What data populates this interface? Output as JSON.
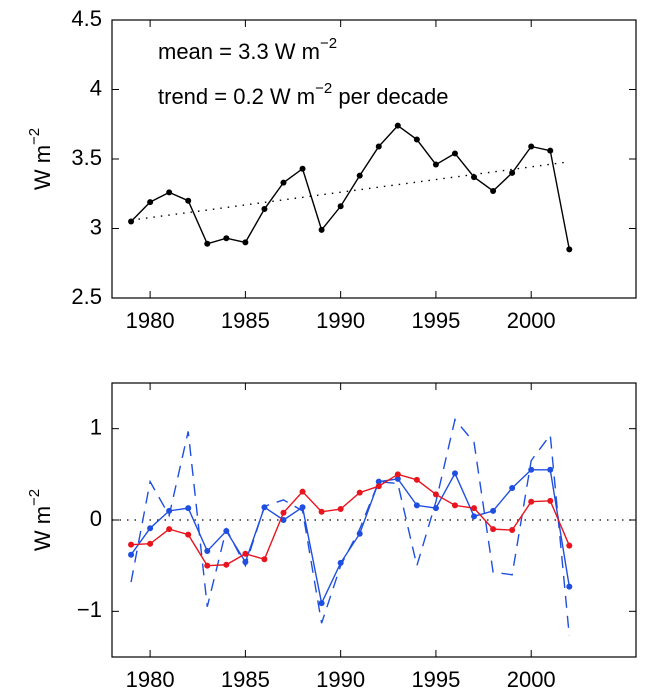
{
  "chart_data": [
    {
      "type": "line",
      "ylabel": {
        "text": "W m",
        "sup": "−2"
      },
      "annotations": [
        {
          "text": "mean = 3.3 W m",
          "sup": "−2"
        },
        {
          "text": "trend = 0.2 W m",
          "sup": "−2",
          "after": " per decade"
        }
      ],
      "x": [
        1979,
        1980,
        1981,
        1982,
        1983,
        1984,
        1985,
        1986,
        1987,
        1988,
        1989,
        1990,
        1991,
        1992,
        1993,
        1994,
        1995,
        1996,
        1997,
        1998,
        1999,
        2000,
        2001,
        2002
      ],
      "series": [
        {
          "color": "#000000",
          "style": "solid",
          "markers": true,
          "values": [
            3.05,
            3.19,
            3.26,
            3.2,
            2.89,
            2.93,
            2.9,
            3.14,
            3.33,
            3.43,
            2.99,
            3.16,
            3.38,
            3.59,
            3.74,
            3.64,
            3.46,
            3.54,
            3.37,
            3.27,
            3.4,
            3.59,
            3.56,
            2.85
          ]
        },
        {
          "color": "#000000",
          "style": "dotted",
          "markers": false,
          "x": [
            1979,
            2002
          ],
          "values": [
            3.06,
            3.48
          ]
        }
      ],
      "xlim": [
        1978,
        2005.5
      ],
      "xticks": [
        1980,
        1985,
        1990,
        1995,
        2000
      ],
      "ylim": [
        2.5,
        4.5
      ],
      "yticks": [
        2.5,
        3,
        3.5,
        4,
        4.5
      ]
    },
    {
      "type": "line",
      "ylabel": {
        "text": "W m",
        "sup": "−2"
      },
      "x": [
        1979,
        1980,
        1981,
        1982,
        1983,
        1984,
        1985,
        1986,
        1987,
        1988,
        1989,
        1990,
        1991,
        1992,
        1993,
        1994,
        1995,
        1996,
        1997,
        1998,
        1999,
        2000,
        2001,
        2002
      ],
      "hline": {
        "value": 0,
        "color": "#000000",
        "style": "dotted"
      },
      "series": [
        {
          "color": "#1f4fe0",
          "style": "dashed",
          "markers": false,
          "values": [
            -0.68,
            0.42,
            0.05,
            0.97,
            -0.95,
            -0.1,
            -0.5,
            0.15,
            0.22,
            0.1,
            -1.13,
            -0.5,
            -0.1,
            0.42,
            0.4,
            -0.5,
            0.2,
            1.1,
            0.85,
            -0.57,
            -0.6,
            0.65,
            0.93,
            -1.27
          ]
        },
        {
          "color": "#1f4fe0",
          "style": "solid",
          "markers": true,
          "values": [
            -0.38,
            -0.09,
            0.1,
            0.13,
            -0.34,
            -0.12,
            -0.46,
            0.14,
            0,
            0.14,
            -0.91,
            -0.47,
            -0.15,
            0.42,
            0.45,
            0.16,
            0.13,
            0.51,
            0.04,
            0.1,
            0.35,
            0.55,
            0.55,
            -0.73
          ]
        },
        {
          "color": "#e8141e",
          "style": "solid",
          "markers": true,
          "values": [
            -0.27,
            -0.26,
            -0.1,
            -0.16,
            -0.5,
            -0.49,
            -0.37,
            -0.43,
            0.08,
            0.31,
            0.09,
            0.12,
            0.3,
            0.37,
            0.5,
            0.44,
            0.28,
            0.16,
            0.13,
            -0.1,
            -0.11,
            0.2,
            0.21,
            -0.28
          ]
        }
      ],
      "xlim": [
        1978,
        2005.5
      ],
      "xticks": [
        1980,
        1985,
        1990,
        1995,
        2000
      ],
      "ylim": [
        -1.5,
        1.5
      ],
      "yticks": [
        {
          "value": -1,
          "label": "−1"
        },
        0,
        1
      ]
    }
  ]
}
